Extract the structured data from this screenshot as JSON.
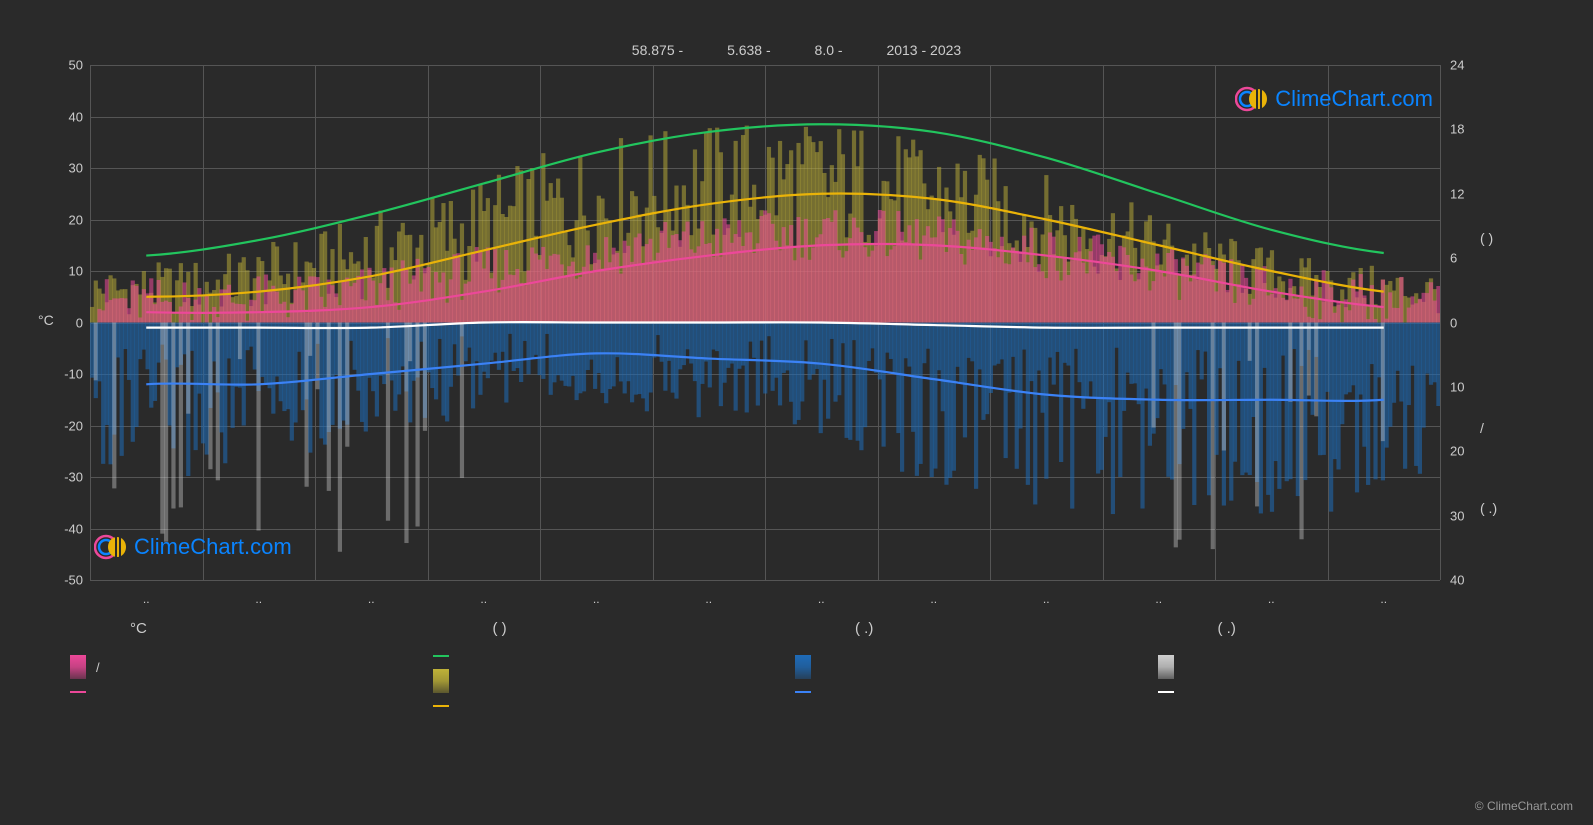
{
  "header": {
    "lat": "58.875 -",
    "lon": "5.638 -",
    "elev": "8.0 -",
    "years": "2013 - 2023"
  },
  "brand": "ClimeChart.com",
  "copyright": "© ClimeChart.com",
  "chart": {
    "type": "combo",
    "background_color": "#2a2a2a",
    "grid_color": "#555555",
    "left_axis": {
      "title": "°C",
      "min": -50,
      "max": 50,
      "step": 10,
      "ticks": [
        50,
        40,
        30,
        20,
        10,
        0,
        -10,
        -20,
        -30,
        -40,
        -50
      ]
    },
    "right_axis": {
      "top_ticks": [
        24,
        18,
        12,
        6,
        0
      ],
      "bottom_ticks": [
        10,
        20,
        30,
        40
      ],
      "top_title_paren": "(      )",
      "mid_title": "/",
      "bottom_title_paren": "(  .)"
    },
    "months": [
      "..",
      "..",
      "..",
      "..",
      "..",
      "..",
      "..",
      "..",
      "..",
      "..",
      "..",
      ".."
    ],
    "lines": {
      "green": {
        "color": "#22c55e",
        "values": [
          13,
          16,
          21,
          27,
          33,
          37,
          38.5,
          37,
          32,
          25,
          18,
          13.5
        ]
      },
      "yellow": {
        "color": "#eab308",
        "values": [
          5,
          6,
          9,
          14,
          19,
          23,
          25,
          24,
          20,
          15,
          10,
          6
        ]
      },
      "pink": {
        "color": "#ec4899",
        "values": [
          2,
          2,
          3,
          6,
          10,
          13,
          15,
          15,
          13,
          10,
          6,
          3
        ]
      },
      "white": {
        "color": "#ffffff",
        "values": [
          -1,
          -1,
          -1,
          0,
          0,
          0,
          0,
          -0.5,
          -1,
          -1,
          -1,
          -1
        ]
      },
      "blue": {
        "color": "#3b82f6",
        "values": [
          -12,
          -12,
          -10,
          -8,
          -6,
          -7,
          -8,
          -11,
          -14,
          -15,
          -15,
          -15
        ]
      }
    },
    "bars": {
      "temp_max": {
        "color": "#ec4899",
        "opacity": 0.55
      },
      "sun": {
        "color": "#bfb238",
        "opacity": 0.5
      },
      "rain": {
        "color": "#1e6bb8",
        "opacity": 0.55
      },
      "snow": {
        "color": "#cfcfcf",
        "opacity": 0.4
      }
    }
  },
  "legend": {
    "headers": [
      "°C",
      "(        )",
      "(  .)",
      "(  .)"
    ],
    "col1": [
      {
        "type": "bar",
        "color": "#ec4899",
        "label": "/"
      },
      {
        "type": "line",
        "color": "#ec4899",
        "label": ""
      }
    ],
    "col2": [
      {
        "type": "line",
        "color": "#22c55e",
        "label": ""
      },
      {
        "type": "bar",
        "color": "#bfb238",
        "label": ""
      },
      {
        "type": "line",
        "color": "#eab308",
        "label": ""
      }
    ],
    "col3": [
      {
        "type": "bar",
        "color": "#1e6bb8",
        "label": ""
      },
      {
        "type": "line",
        "color": "#3b82f6",
        "label": ""
      }
    ],
    "col4": [
      {
        "type": "bar",
        "color": "#cfcfcf",
        "label": ""
      },
      {
        "type": "line",
        "color": "#ffffff",
        "label": ""
      }
    ]
  }
}
